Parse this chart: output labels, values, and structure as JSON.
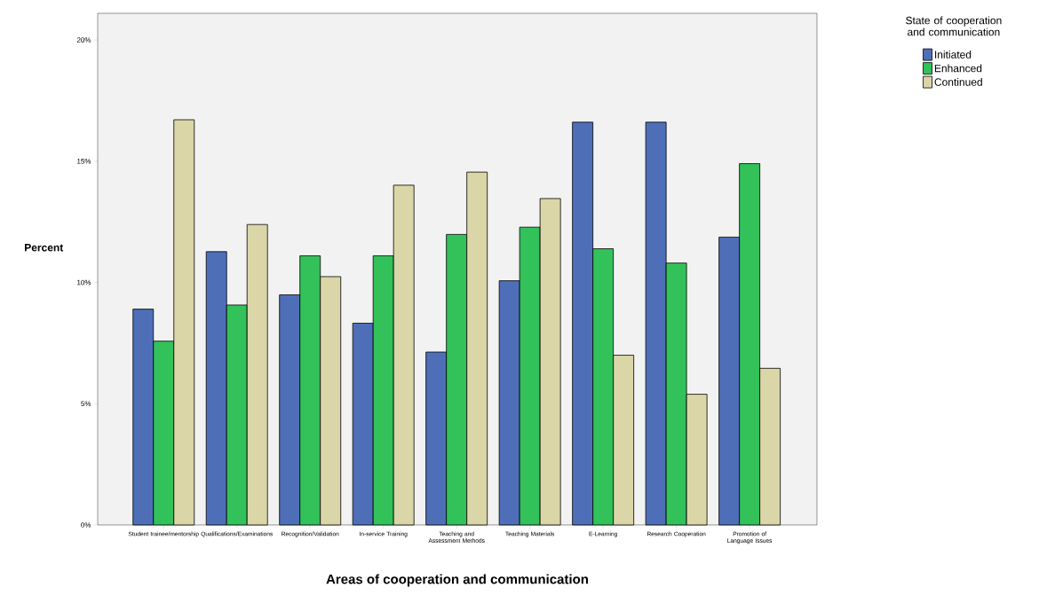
{
  "chart_data": {
    "type": "bar",
    "xlabel": "Areas of cooperation and communication",
    "ylabel": "Percent",
    "legend_title": "State of cooperation and communication",
    "legend": "top right",
    "categories": [
      "Student trainee/mentorship",
      "Qualifications/Examinations",
      "Recognition/Validation",
      "In-service Training",
      "Teaching and Assessment Methods",
      "Teaching Materials",
      "E-Learning",
      "Research Cooperation",
      "Promotion of Language Issues"
    ],
    "series": [
      {
        "name": "Initiated",
        "color": "#4e6fb8",
        "values": [
          8.9,
          11.27,
          9.49,
          8.32,
          7.13,
          10.07,
          16.61,
          16.61,
          11.87
        ]
      },
      {
        "name": "Enhanced",
        "color": "#33c15a",
        "values": [
          7.58,
          9.07,
          11.1,
          11.1,
          11.98,
          12.28,
          11.39,
          10.8,
          14.9
        ]
      },
      {
        "name": "Continued",
        "color": "#dbd6a7",
        "values": [
          16.71,
          12.39,
          10.24,
          14.01,
          14.55,
          13.46,
          7.0,
          5.39,
          6.46
        ]
      }
    ],
    "ylim": [
      0,
      21.1
    ],
    "yticks": [
      {
        "value": 0,
        "label": "0%"
      },
      {
        "value": 5,
        "label": "5%"
      },
      {
        "value": 10,
        "label": "10%"
      },
      {
        "value": 15,
        "label": "15%"
      },
      {
        "value": 20,
        "label": "20%"
      }
    ]
  }
}
